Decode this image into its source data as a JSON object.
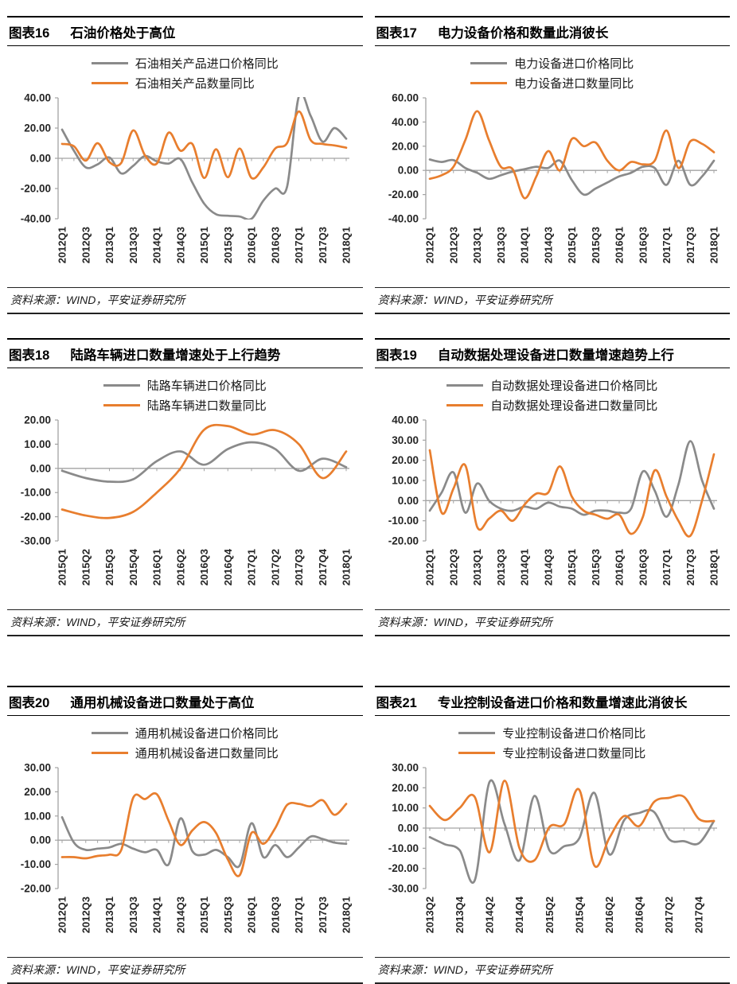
{
  "page_background": "#ffffff",
  "colors": {
    "price_line": "#8A8A8A",
    "quantity_line": "#E87E2E",
    "axis_line": "#A3A3A3",
    "tick_text": "#262626",
    "rule_dark": "#000000"
  },
  "chart_data": [
    {
      "type": "line",
      "tag": "图表16",
      "title": "石油价格处于高位",
      "source": "资料来源：WIND，平安证券研究所",
      "legend_position": "top",
      "grid": false,
      "ylim": [
        -40,
        40
      ],
      "y_tick_labels": [
        "40.00",
        "20.00",
        "0.00",
        "-20.00",
        "-40.00"
      ],
      "x": [
        "2012Q1",
        "2012Q2",
        "2012Q3",
        "2012Q4",
        "2013Q1",
        "2013Q2",
        "2013Q3",
        "2013Q4",
        "2014Q1",
        "2014Q2",
        "2014Q3",
        "2014Q4",
        "2015Q1",
        "2015Q2",
        "2015Q3",
        "2015Q4",
        "2016Q1",
        "2016Q2",
        "2016Q3",
        "2016Q4",
        "2017Q1",
        "2017Q2",
        "2017Q3",
        "2017Q4",
        "2018Q1"
      ],
      "x_label_step": 2,
      "x_tick_labels": [
        "2012Q1",
        "2012Q3",
        "2013Q1",
        "2013Q3",
        "2014Q1",
        "2014Q3",
        "2015Q1",
        "2015Q3",
        "2016Q1",
        "2016Q3",
        "2017Q1",
        "2017Q3",
        "2018Q1"
      ],
      "series": [
        {
          "name": "石油相关产品进口价格同比",
          "color": "#8A8A8A",
          "values": [
            19,
            5,
            -6,
            -4,
            0.5,
            -10,
            -5,
            1.5,
            -2,
            -3.5,
            -0.5,
            -16,
            -30,
            -37,
            -38,
            -38.5,
            -40,
            -28,
            -20,
            -19,
            41,
            28,
            11,
            20,
            13
          ]
        },
        {
          "name": "石油相关产品数量同比",
          "color": "#E87E2E",
          "values": [
            9.5,
            8,
            -1.5,
            10,
            -2.5,
            -3,
            18.5,
            2,
            -3.5,
            17,
            5,
            9.5,
            -13,
            6,
            -12.5,
            6.5,
            -13,
            -6,
            6.5,
            10,
            31,
            12,
            9.5,
            8.5,
            7
          ]
        }
      ]
    },
    {
      "type": "line",
      "tag": "图表17",
      "title": "电力设备价格和数量此消彼长",
      "source": "资料来源：WIND，平安证券研究所",
      "legend_position": "top",
      "grid": false,
      "ylim": [
        -40,
        60
      ],
      "y_tick_labels": [
        "60.00",
        "40.00",
        "20.00",
        "0.00",
        "-20.00",
        "-40.00"
      ],
      "x": [
        "2012Q1",
        "2012Q2",
        "2012Q3",
        "2012Q4",
        "2013Q1",
        "2013Q2",
        "2013Q3",
        "2013Q4",
        "2014Q1",
        "2014Q2",
        "2014Q3",
        "2014Q4",
        "2015Q1",
        "2015Q2",
        "2015Q3",
        "2015Q4",
        "2016Q1",
        "2016Q2",
        "2016Q3",
        "2016Q4",
        "2017Q1",
        "2017Q2",
        "2017Q3",
        "2017Q4",
        "2018Q1"
      ],
      "x_label_step": 2,
      "x_tick_labels": [
        "2012Q1",
        "2012Q3",
        "2013Q1",
        "2013Q3",
        "2014Q1",
        "2014Q3",
        "2015Q1",
        "2015Q3",
        "2016Q1",
        "2016Q3",
        "2017Q1",
        "2017Q3",
        "2018Q1"
      ],
      "series": [
        {
          "name": "电力设备进口价格同比",
          "color": "#8A8A8A",
          "values": [
            9,
            7,
            8.5,
            2,
            -2,
            -7,
            -4,
            -1,
            1,
            3,
            2,
            8,
            -8,
            -20,
            -15,
            -10,
            -5,
            -2,
            3,
            2,
            -12,
            8,
            -12,
            -5,
            8
          ]
        },
        {
          "name": "电力设备进口数量同比",
          "color": "#E87E2E",
          "values": [
            -7,
            -4,
            3,
            25,
            49,
            25,
            3,
            1,
            -23,
            -5,
            16,
            0,
            26,
            20,
            23,
            8,
            0,
            7,
            5,
            8,
            33,
            2,
            24,
            22,
            15
          ]
        }
      ]
    },
    {
      "type": "line",
      "tag": "图表18",
      "title": "陆路车辆进口数量增速处于上行趋势",
      "source": "资料来源：WIND，平安证券研究所",
      "legend_position": "top",
      "grid": false,
      "ylim": [
        -30,
        20
      ],
      "y_tick_labels": [
        "20.00",
        "10.00",
        "0.00",
        "-10.00",
        "-20.00",
        "-30.00"
      ],
      "x": [
        "2015Q1",
        "2015Q2",
        "2015Q3",
        "2015Q4",
        "2016Q1",
        "2016Q2",
        "2016Q3",
        "2016Q4",
        "2017Q1",
        "2017Q2",
        "2017Q3",
        "2017Q4",
        "2018Q1"
      ],
      "x_label_step": 1,
      "x_tick_labels": [
        "2015Q1",
        "2015Q2",
        "2015Q3",
        "2015Q4",
        "2016Q1",
        "2016Q2",
        "2016Q3",
        "2016Q4",
        "2017Q1",
        "2017Q2",
        "2017Q3",
        "2017Q4",
        "2018Q1"
      ],
      "series": [
        {
          "name": "陆路车辆进口价格同比",
          "color": "#8A8A8A",
          "values": [
            -1,
            -4,
            -5.5,
            -4.5,
            3,
            7,
            1.5,
            8,
            10.8,
            8,
            -1,
            4,
            0.5
          ]
        },
        {
          "name": "陆路车辆进口数量同比",
          "color": "#E87E2E",
          "values": [
            -17,
            -19.5,
            -20.5,
            -18,
            -10,
            0,
            16,
            17.5,
            14,
            15.8,
            10,
            -4,
            7
          ]
        }
      ]
    },
    {
      "type": "line",
      "tag": "图表19",
      "title": "自动数据处理设备进口数量增速趋势上行",
      "source": "资料来源：WIND，平安证券研究所",
      "legend_position": "top",
      "grid": false,
      "ylim": [
        -20,
        40
      ],
      "y_tick_labels": [
        "40.00",
        "30.00",
        "20.00",
        "10.00",
        "0.00",
        "-10.00",
        "-20.00"
      ],
      "x": [
        "2012Q1",
        "2012Q2",
        "2012Q3",
        "2012Q4",
        "2013Q1",
        "2013Q2",
        "2013Q3",
        "2013Q4",
        "2014Q1",
        "2014Q2",
        "2014Q3",
        "2014Q4",
        "2015Q1",
        "2015Q2",
        "2015Q3",
        "2015Q4",
        "2016Q1",
        "2016Q2",
        "2016Q3",
        "2016Q4",
        "2017Q1",
        "2017Q2",
        "2017Q3",
        "2017Q4",
        "2018Q1"
      ],
      "x_label_step": 2,
      "x_tick_labels": [
        "2012Q1",
        "2012Q3",
        "2013Q1",
        "2013Q3",
        "2014Q1",
        "2014Q3",
        "2015Q1",
        "2015Q3",
        "2016Q1",
        "2016Q3",
        "2017Q1",
        "2017Q3",
        "2018Q1"
      ],
      "series": [
        {
          "name": "自动数据处理设备进口价格同比",
          "color": "#8A8A8A",
          "values": [
            -5,
            4,
            14,
            -6,
            8.5,
            0,
            -4,
            -5,
            -3,
            -4,
            -1,
            -3,
            -4,
            -7,
            -5,
            -5,
            -6,
            -4,
            14.5,
            5,
            -8,
            8,
            29.5,
            10,
            -4
          ]
        },
        {
          "name": "自动数据处理设备进口数量同比",
          "color": "#E87E2E",
          "values": [
            25,
            -6,
            6,
            17.5,
            -13,
            -9,
            -5,
            -10,
            -2,
            3.5,
            4,
            17,
            2,
            -5,
            -7,
            -9,
            -7,
            -16.5,
            -8,
            15,
            2,
            -10,
            -17.5,
            0,
            23
          ]
        }
      ]
    },
    {
      "type": "line",
      "tag": "图表20",
      "title": "通用机械设备进口数量处于高位",
      "source": "资料来源：WIND，平安证券研究所",
      "legend_position": "top",
      "grid": false,
      "ylim": [
        -20,
        30
      ],
      "y_tick_labels": [
        "30.00",
        "20.00",
        "10.00",
        "0.00",
        "-10.00",
        "-20.00"
      ],
      "x": [
        "2012Q1",
        "2012Q2",
        "2012Q3",
        "2012Q4",
        "2013Q1",
        "2013Q2",
        "2013Q3",
        "2013Q4",
        "2014Q1",
        "2014Q2",
        "2014Q3",
        "2014Q4",
        "2015Q1",
        "2015Q2",
        "2015Q3",
        "2015Q4",
        "2016Q1",
        "2016Q2",
        "2016Q3",
        "2016Q4",
        "2017Q1",
        "2017Q2",
        "2017Q3",
        "2017Q4",
        "2018Q1"
      ],
      "x_label_step": 2,
      "x_tick_labels": [
        "2012Q1",
        "2012Q3",
        "2013Q1",
        "2013Q3",
        "2014Q1",
        "2014Q3",
        "2015Q1",
        "2015Q3",
        "2016Q1",
        "2016Q3",
        "2017Q1",
        "2017Q3",
        "2018Q1"
      ],
      "series": [
        {
          "name": "通用机械设备进口价格同比",
          "color": "#8A8A8A",
          "values": [
            9.5,
            -1,
            -4,
            -3.5,
            -3,
            -1.5,
            -3.5,
            -5,
            -4,
            -10,
            9,
            -4.5,
            -6,
            -4,
            -7,
            -10.5,
            7,
            -7,
            -2,
            -7,
            -3,
            1.5,
            0.5,
            -1,
            -1.5
          ]
        },
        {
          "name": "通用机械设备进口数量同比",
          "color": "#E87E2E",
          "values": [
            -7,
            -7,
            -7.5,
            -6.5,
            -6,
            -4,
            17.5,
            17,
            19,
            8,
            -2,
            4,
            7.5,
            3,
            -8,
            -14.5,
            3,
            -1.5,
            5,
            14.5,
            15,
            14,
            16.5,
            10.5,
            15
          ]
        }
      ]
    },
    {
      "type": "line",
      "tag": "图表21",
      "title": "专业控制设备进口价格和数量增速此消彼长",
      "source": "资料来源：WIND，平安证券研究所",
      "legend_position": "top",
      "grid": false,
      "ylim": [
        -30,
        30
      ],
      "y_tick_labels": [
        "30.00",
        "20.00",
        "10.00",
        "0.00",
        "-10.00",
        "-20.00",
        "-30.00"
      ],
      "x": [
        "2013Q2",
        "2013Q3",
        "2013Q4",
        "2014Q1",
        "2014Q2",
        "2014Q3",
        "2014Q4",
        "2015Q1",
        "2015Q2",
        "2015Q3",
        "2015Q4",
        "2016Q1",
        "2016Q2",
        "2016Q3",
        "2016Q4",
        "2017Q1",
        "2017Q2",
        "2017Q3",
        "2017Q4",
        "2018Q1"
      ],
      "x_label_step": 2,
      "x_tick_labels": [
        "2013Q2",
        "2013Q4",
        "2014Q2",
        "2014Q4",
        "2015Q2",
        "2015Q4",
        "2016Q2",
        "2016Q4",
        "2017Q2",
        "2017Q4"
      ],
      "series": [
        {
          "name": "专业控制设备进口价格同比",
          "color": "#8A8A8A",
          "values": [
            -4.5,
            -8,
            -11,
            -26,
            23,
            2,
            -16,
            16,
            -11,
            -9,
            -5,
            17.5,
            -13,
            4,
            7.5,
            8,
            -5.5,
            -6.5,
            -7.5,
            3.5
          ]
        },
        {
          "name": "专业控制设备进口数量同比",
          "color": "#E87E2E",
          "values": [
            11,
            4,
            10,
            15.5,
            -12,
            23.5,
            -10,
            -16,
            0.5,
            2,
            19,
            -18.5,
            -5,
            6,
            1,
            13,
            15,
            15.5,
            4.5,
            3.5
          ]
        }
      ]
    }
  ]
}
